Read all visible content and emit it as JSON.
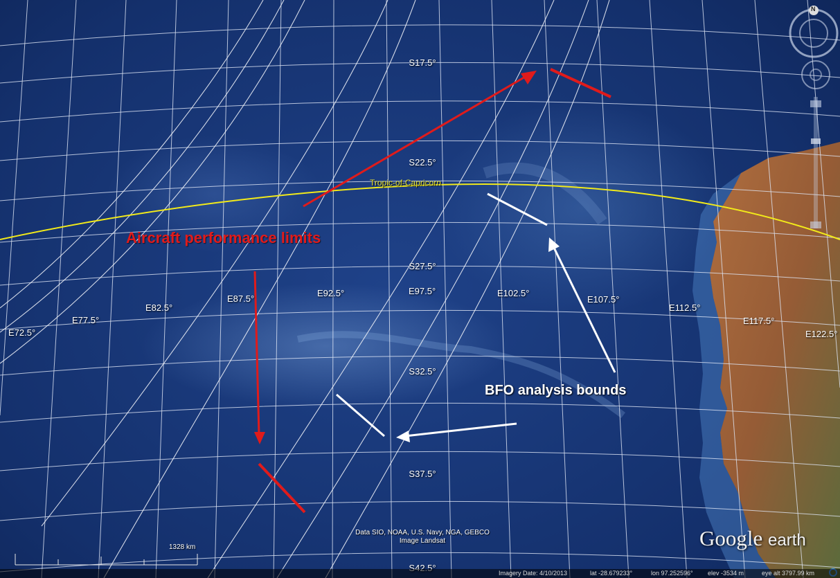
{
  "map": {
    "latitude_labels": [
      "S17.5°",
      "S22.5°",
      "S27.5°",
      "S32.5°",
      "S37.5°",
      "S42.5°"
    ],
    "longitude_labels": [
      "E72.5°",
      "E77.5°",
      "E82.5°",
      "E87.5°",
      "E92.5°",
      "E97.5°",
      "E102.5°",
      "E107.5°",
      "E112.5°",
      "E117.5°",
      "E122.5°"
    ],
    "tropic_label": "Tropic-of-Capricorn",
    "colors": {
      "tropic_line": "#f2ea1a",
      "performance": "#e01b1b",
      "bfo": "#ffffff",
      "ocean": "#1a3a7c",
      "land": "#b06a38"
    }
  },
  "annotations": {
    "performance_label": "Aircraft performance limits",
    "bfo_label": "BFO analysis bounds"
  },
  "attribution": {
    "line1": "Data SIO, NOAA, U.S. Navy, NGA, GEBCO",
    "line2": "Image Landsat"
  },
  "logo": {
    "brand": "Google",
    "product": "earth"
  },
  "scale_bar": {
    "label": "1328 km"
  },
  "status_bar": {
    "imagery_date": "Imagery Date: 4/10/2013",
    "lat": "lat -28.679233°",
    "lon": "lon  97.252596°",
    "elev": "elev -3534 m",
    "eye_alt": "eye alt 3797.99 km"
  },
  "controls": {
    "compass_letter": "N",
    "icons": [
      "compass-icon",
      "look-joystick-icon",
      "move-joystick-icon",
      "zoom-slider-icon",
      "status-indicator-icon"
    ]
  }
}
